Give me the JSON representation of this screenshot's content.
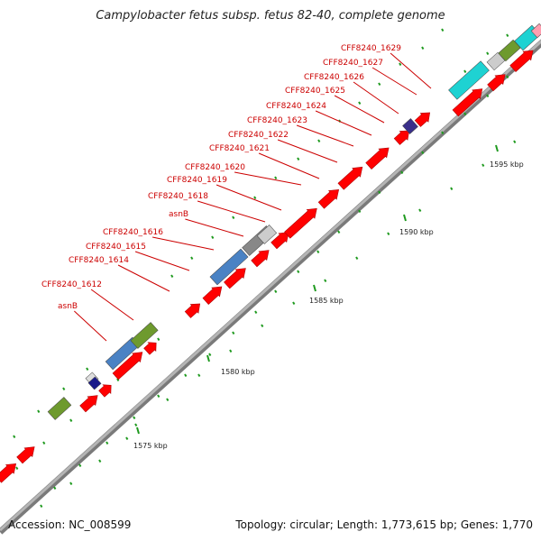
{
  "title": "Campylobacter fetus subsp. fetus 82-40, complete genome",
  "accession": "Accession: NC_008599",
  "summary": "Topology: circular; Length: 1,773,615 bp; Genes: 1,770",
  "colors": {
    "backbone": "#a6a6a6",
    "gene": "#ff0000",
    "rna_blue": "#4a82c4",
    "green": "#6e9a2e",
    "cyan": "#1ed2d2",
    "purple": "#3a2f8a",
    "gray": "#888888",
    "tick": "#1f9a1f",
    "label": "#cc0000"
  },
  "tick_labels": [
    "1575 kbp",
    "1580 kbp",
    "1585 kbp",
    "1590 kbp",
    "1595 kbp"
  ],
  "gene_labels": [
    "asnB",
    "CFF8240_1612",
    "CFF8240_1614",
    "CFF8240_1615",
    "CFF8240_1616",
    "asnB",
    "CFF8240_1618",
    "CFF8240_1619",
    "CFF8240_1620",
    "CFF8240_1621",
    "CFF8240_1622",
    "CFF8240_1623",
    "CFF8240_1624",
    "CFF8240_1625",
    "CFF8240_1626",
    "CFF8240_1627",
    "CFF8240_1629"
  ]
}
